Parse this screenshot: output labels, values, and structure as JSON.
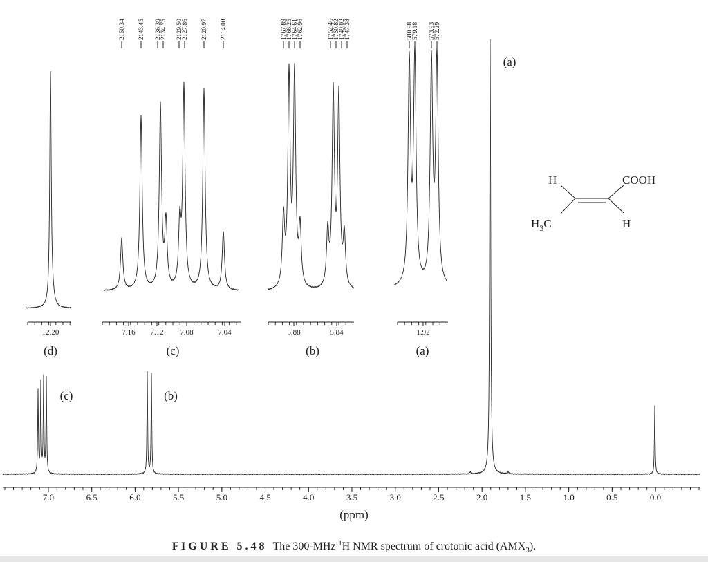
{
  "peak_labels": {
    "c": [
      "2150.34",
      "2143.45",
      "2136.39",
      "2134.75",
      "2129.50",
      "2127.86",
      "2120.97",
      "2114.08"
    ],
    "b": [
      "1767.89",
      "1766.25",
      "1764.61",
      "1762.96",
      "1752.46",
      "1750.82",
      "1749.02",
      "1747.38"
    ],
    "a": [
      "580.98",
      "579.18",
      "573.93",
      "572.29"
    ]
  },
  "insets": [
    {
      "label": "(d)",
      "ticks": [
        "12.20"
      ]
    },
    {
      "label": "(c)",
      "ticks": [
        "7.16",
        "7.12",
        "7.08",
        "7.04"
      ]
    },
    {
      "label": "(b)",
      "ticks": [
        "5.88",
        "5.84"
      ]
    },
    {
      "label": "(a)",
      "ticks": [
        "1.92"
      ]
    }
  ],
  "spectrum_labels": {
    "a": "(a)",
    "c": "(c)",
    "b": "(b)"
  },
  "main_axis": {
    "ticks": [
      "7.0",
      "6.5",
      "6.0",
      "5.5",
      "5.0",
      "4.5",
      "4.0",
      "3.5",
      "3.0",
      "2.5",
      "2.0",
      "1.5",
      "1.0",
      "0.5",
      "0.0"
    ],
    "label": "(ppm)"
  },
  "molecule": {
    "h_top": "H",
    "cooh": "COOH",
    "h3c_h": "H",
    "h3c_sub": "3",
    "h3c_c": "C",
    "h_bottom": "H"
  },
  "caption": {
    "figure": "F I G U R E   5 . 4 8",
    "text_1": "The 300-MHz ",
    "sup": "1",
    "text_2": "H NMR spectrum of crotonic acid (AMX",
    "sub": "3",
    "text_3": ")."
  }
}
